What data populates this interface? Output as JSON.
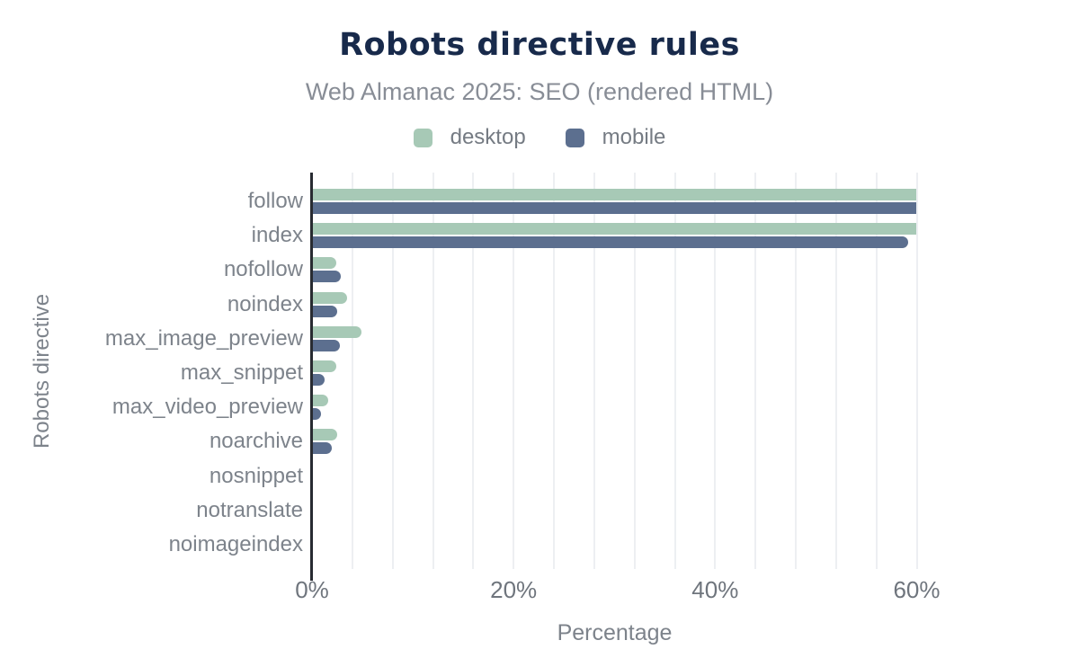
{
  "chart_data": {
    "type": "bar",
    "orientation": "horizontal",
    "title": "Robots directive rules",
    "subtitle": "Web Almanac 2025: SEO (rendered HTML)",
    "xlabel": "Percentage",
    "ylabel": "Robots directive",
    "xlim": [
      0,
      60
    ],
    "x_ticks": [
      {
        "value": 0,
        "label": "0%"
      },
      {
        "value": 20,
        "label": "20%"
      },
      {
        "value": 40,
        "label": "40%"
      },
      {
        "value": 60,
        "label": "60%"
      }
    ],
    "minor_gridline_step_pct": 4,
    "grid": true,
    "legend_position": "top",
    "categories": [
      "follow",
      "index",
      "nofollow",
      "noindex",
      "max_image_preview",
      "max_snippet",
      "max_video_preview",
      "noarchive",
      "nosnippet",
      "notranslate",
      "noimageindex"
    ],
    "series": [
      {
        "name": "desktop",
        "color": "#a7c9b6",
        "values": [
          59.9,
          59.9,
          2.3,
          3.4,
          4.8,
          2.3,
          1.5,
          2.4,
          0,
          0,
          0
        ]
      },
      {
        "name": "mobile",
        "color": "#5c6f8f",
        "values": [
          59.9,
          59.1,
          2.8,
          2.4,
          2.7,
          1.2,
          0.8,
          1.9,
          0,
          0,
          0
        ]
      }
    ]
  },
  "colors": {
    "title": "#182a4b",
    "subtitle": "#888d96",
    "category_labels": "#7d838b",
    "tick_labels": "#6f757d",
    "legend_text": "#757b83",
    "axis_title": "#7d838b",
    "axis_line": "#282b31",
    "gridline": "#edeff2",
    "background": "#ffffff"
  }
}
